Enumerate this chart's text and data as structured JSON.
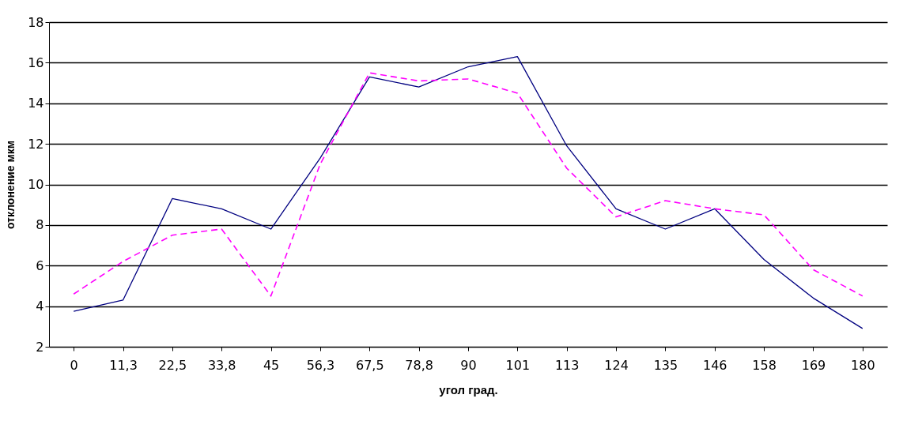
{
  "chart_data": {
    "type": "line",
    "xlabel": "угол град.",
    "ylabel": "отклонение мкм",
    "categories": [
      "0",
      "11,3",
      "22,5",
      "33,8",
      "45",
      "56,3",
      "67,5",
      "78,8",
      "90",
      "101",
      "113",
      "124",
      "135",
      "146",
      "158",
      "169",
      "180"
    ],
    "series": [
      {
        "color": "#000080",
        "line_style": "solid",
        "values": [
          3.75,
          4.3,
          9.3,
          8.8,
          7.8,
          11.3,
          15.3,
          14.8,
          15.8,
          16.3,
          11.9,
          8.8,
          7.8,
          8.8,
          6.3,
          4.4,
          2.9
        ]
      },
      {
        "color": "#ff00ff",
        "line_style": "dashed",
        "values": [
          4.6,
          6.2,
          7.5,
          7.8,
          4.5,
          11.0,
          15.5,
          15.1,
          15.2,
          14.5,
          10.8,
          8.4,
          9.2,
          8.8,
          8.5,
          5.8,
          4.5
        ]
      }
    ],
    "ylim": [
      2,
      18
    ],
    "yticks": [
      2,
      4,
      6,
      8,
      10,
      12,
      14,
      16,
      18
    ],
    "grid": "y",
    "marker": "none"
  }
}
